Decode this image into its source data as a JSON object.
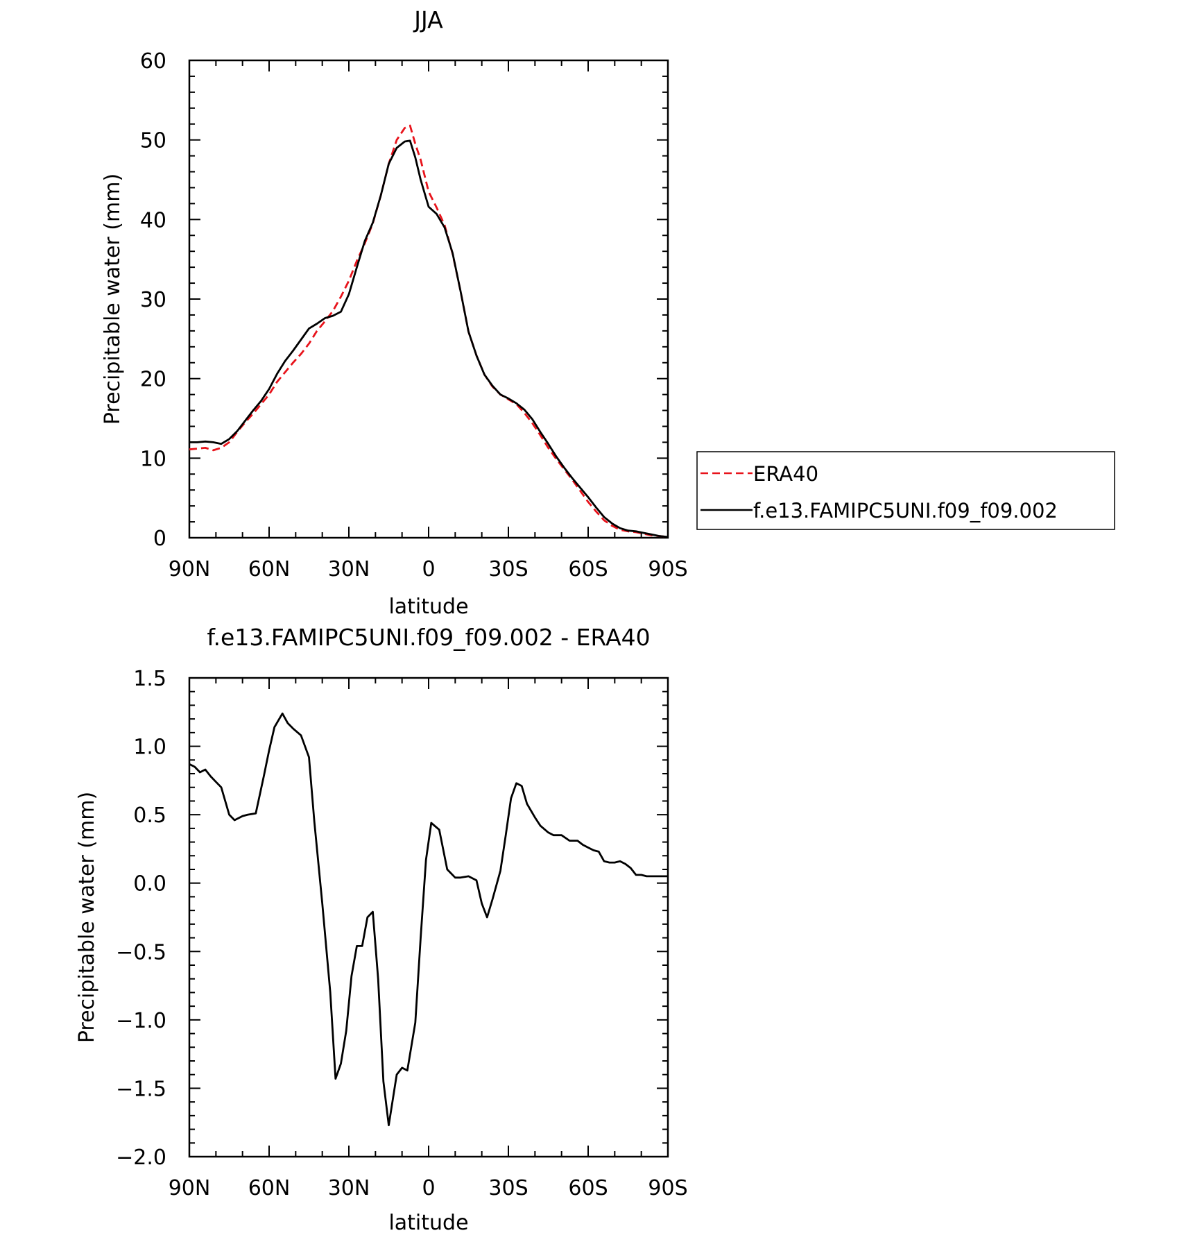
{
  "chart_data": [
    {
      "type": "line",
      "title": "JJA",
      "xlabel": "latitude",
      "ylabel": "Precipitable water (mm)",
      "xlim": [
        90,
        -90
      ],
      "ylim": [
        0,
        60
      ],
      "xticks": [
        {
          "value": 90,
          "label": "90N"
        },
        {
          "value": 60,
          "label": "60N"
        },
        {
          "value": 30,
          "label": "30N"
        },
        {
          "value": 0,
          "label": "0"
        },
        {
          "value": -30,
          "label": "30S"
        },
        {
          "value": -60,
          "label": "60S"
        },
        {
          "value": -90,
          "label": "90S"
        }
      ],
      "yticks": [
        0,
        10,
        20,
        30,
        40,
        50,
        60
      ],
      "legend": {
        "position": "right",
        "box": true
      },
      "series": [
        {
          "name": "ERA40",
          "color": "#e8131b",
          "dash": "dashed",
          "x": [
            90,
            87,
            84,
            81,
            78,
            75,
            72,
            69,
            66,
            63,
            60,
            57,
            54,
            51,
            48,
            45,
            42,
            39,
            36,
            33,
            30,
            27,
            24,
            21,
            18,
            15,
            12,
            9,
            7,
            5,
            3,
            0,
            -3,
            -6,
            -9,
            -12,
            -15,
            -18,
            -21,
            -24,
            -27,
            -30,
            -33,
            -36,
            -39,
            -42,
            -45,
            -48,
            -51,
            -54,
            -57,
            -60,
            -63,
            -66,
            -69,
            -72,
            -75,
            -78,
            -81,
            -84,
            -87,
            -90
          ],
          "y": [
            11.1,
            11.2,
            11.3,
            11.0,
            11.3,
            12.0,
            13.3,
            14.5,
            15.6,
            16.8,
            18.0,
            19.6,
            20.8,
            22.0,
            23.1,
            24.4,
            26.0,
            27.2,
            28.5,
            30.3,
            32.3,
            34.8,
            37.0,
            39.5,
            43.0,
            47.0,
            50.0,
            51.5,
            51.8,
            49.5,
            47.5,
            43.5,
            41.5,
            39.3,
            35.7,
            31.0,
            25.9,
            22.9,
            20.5,
            19.0,
            18.0,
            17.4,
            16.8,
            15.7,
            14.4,
            12.9,
            11.3,
            9.9,
            8.6,
            7.3,
            5.9,
            4.5,
            3.3,
            2.2,
            1.5,
            1.0,
            0.8,
            0.7,
            0.5,
            0.3,
            0.2,
            0.1
          ]
        },
        {
          "name": "f.e13.FAMIPC5UNI.f09_f09.002",
          "color": "#000000",
          "dash": "solid",
          "x": [
            90,
            87,
            84,
            81,
            78,
            75,
            72,
            69,
            66,
            63,
            60,
            57,
            54,
            51,
            48,
            45,
            42,
            39,
            36,
            33,
            30,
            27,
            24,
            21,
            18,
            15,
            12,
            9,
            7,
            5,
            3,
            0,
            -3,
            -6,
            -9,
            -12,
            -15,
            -18,
            -21,
            -24,
            -27,
            -30,
            -33,
            -36,
            -39,
            -42,
            -45,
            -48,
            -51,
            -54,
            -57,
            -60,
            -63,
            -66,
            -69,
            -72,
            -75,
            -78,
            -81,
            -84,
            -87,
            -90
          ],
          "y": [
            12.0,
            12.0,
            12.1,
            12.0,
            11.8,
            12.4,
            13.4,
            14.7,
            16.0,
            17.2,
            18.7,
            20.6,
            22.2,
            23.5,
            24.9,
            26.3,
            26.9,
            27.6,
            27.9,
            28.4,
            30.6,
            34.0,
            37.3,
            39.6,
            43.0,
            47.0,
            49.0,
            49.8,
            49.9,
            47.8,
            45.0,
            41.6,
            40.7,
            39.0,
            35.8,
            31.0,
            25.9,
            22.9,
            20.5,
            19.1,
            18.0,
            17.5,
            16.9,
            16.1,
            14.9,
            13.3,
            11.8,
            10.2,
            8.8,
            7.5,
            6.3,
            5.1,
            3.8,
            2.6,
            1.8,
            1.2,
            0.9,
            0.8,
            0.6,
            0.4,
            0.2,
            0.1
          ]
        }
      ]
    },
    {
      "type": "line",
      "title": "f.e13.FAMIPC5UNI.f09_f09.002 - ERA40",
      "xlabel": "latitude",
      "ylabel": "Precipitable water (mm)",
      "xlim": [
        90,
        -90
      ],
      "ylim": [
        -2.0,
        1.5
      ],
      "xticks": [
        {
          "value": 90,
          "label": "90N"
        },
        {
          "value": 60,
          "label": "60N"
        },
        {
          "value": 30,
          "label": "30N"
        },
        {
          "value": 0,
          "label": "0"
        },
        {
          "value": -30,
          "label": "30S"
        },
        {
          "value": -60,
          "label": "60S"
        },
        {
          "value": -90,
          "label": "90S"
        }
      ],
      "yticks": [
        "1.5",
        "1.0",
        "0.5",
        "0.0",
        "-0.5",
        "-1.0",
        "-1.5",
        "-2.0"
      ],
      "series": [
        {
          "color": "#000000",
          "dash": "solid",
          "x": [
            90,
            88,
            86,
            84,
            82,
            80,
            78,
            75,
            73,
            70,
            68,
            65,
            62,
            60,
            58,
            55,
            53,
            51,
            48,
            45,
            43,
            40,
            37,
            35,
            33,
            31,
            29,
            27,
            25,
            23,
            21,
            19,
            17,
            15,
            12,
            10,
            8,
            5,
            3,
            1,
            -1,
            -4,
            -7,
            -10,
            -12,
            -15,
            -18,
            -20,
            -22,
            -24,
            -27,
            -29,
            -31,
            -33,
            -35,
            -37,
            -40,
            -42,
            -45,
            -47,
            -50,
            -53,
            -56,
            -58,
            -60,
            -62,
            -64,
            -66,
            -68,
            -70,
            -72,
            -74,
            -76,
            -78,
            -80,
            -82,
            -84,
            -86,
            -88,
            -90
          ],
          "y": [
            0.87,
            0.85,
            0.81,
            0.83,
            0.78,
            0.74,
            0.7,
            0.5,
            0.46,
            0.49,
            0.5,
            0.51,
            0.78,
            0.97,
            1.14,
            1.24,
            1.17,
            1.13,
            1.08,
            0.92,
            0.45,
            -0.15,
            -0.8,
            -1.43,
            -1.32,
            -1.08,
            -0.68,
            -0.46,
            -0.46,
            -0.25,
            -0.21,
            -0.7,
            -1.45,
            -1.77,
            -1.4,
            -1.35,
            -1.37,
            -1.02,
            -0.4,
            0.17,
            0.44,
            0.39,
            0.1,
            0.04,
            0.04,
            0.05,
            0.02,
            -0.15,
            -0.25,
            -0.12,
            0.09,
            0.35,
            0.62,
            0.73,
            0.71,
            0.58,
            0.48,
            0.42,
            0.37,
            0.35,
            0.35,
            0.31,
            0.31,
            0.28,
            0.26,
            0.24,
            0.23,
            0.16,
            0.15,
            0.15,
            0.16,
            0.14,
            0.11,
            0.06,
            0.06,
            0.05,
            0.05,
            0.05,
            0.05,
            0.05
          ]
        }
      ]
    }
  ]
}
